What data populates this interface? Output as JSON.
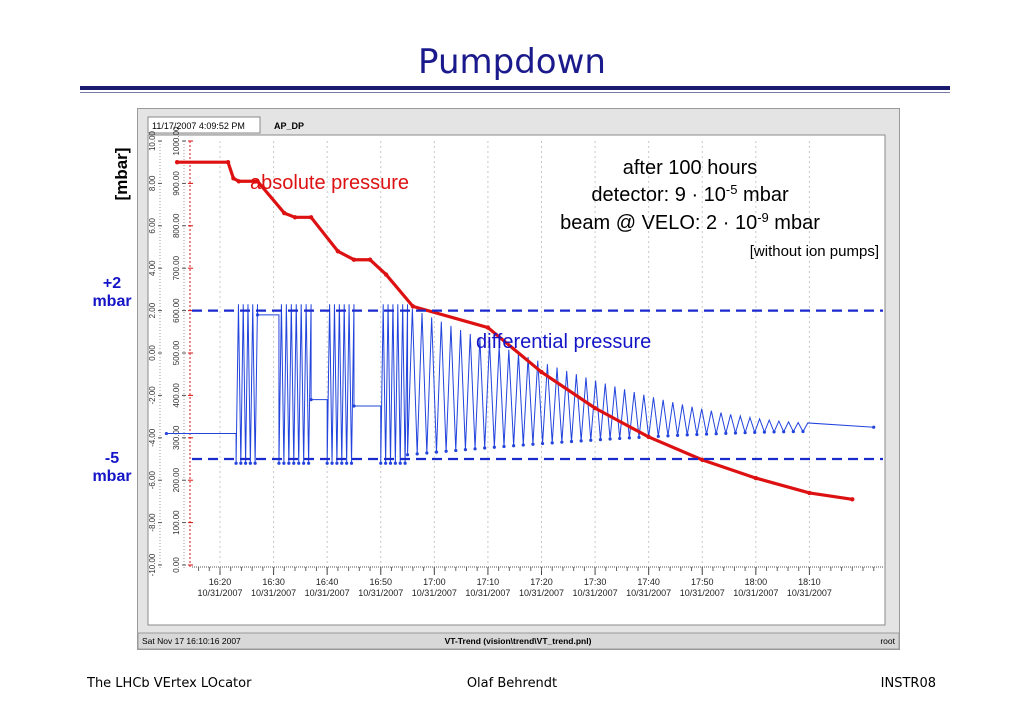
{
  "slide": {
    "title": "Pumpdown",
    "footer_left": "The LHCb VErtex LOcator",
    "footer_center": "Olaf Behrendt",
    "footer_right": "INSTR08"
  },
  "side_labels": {
    "unit": "[mbar]",
    "plus": "+2",
    "plus_unit": "mbar",
    "minus": "-5",
    "minus_unit": "mbar"
  },
  "window": {
    "timestamp": "11/17/2007  4:09:52 PM",
    "tag": "AP_DP",
    "status_left": "Sat Nov 17 16:10:16 2007",
    "status_center": "VT-Trend (vision\\trend\\VT_trend.pnl)",
    "status_right": "root"
  },
  "annotations": {
    "absolute": "absolute pressure",
    "differential": "differential pressure",
    "hours_line": "after 100 hours",
    "detector_prefix": "detector: 9 · 10",
    "detector_exp": "-5",
    "detector_suffix": " mbar",
    "beam_prefix": "beam @ VELO: 2 · 10",
    "beam_exp": "-9",
    "beam_suffix": " mbar",
    "note": "[without ion pumps]"
  },
  "colors": {
    "absolute": "#dd1111",
    "differential": "#2244dd",
    "dashed": "#1a2acc",
    "label_blue": "#1515c8"
  },
  "chart_data": {
    "type": "line",
    "x_ticks": [
      {
        "time": "16:20",
        "date": "10/31/2007"
      },
      {
        "time": "16:30",
        "date": "10/31/2007"
      },
      {
        "time": "16:40",
        "date": "10/31/2007"
      },
      {
        "time": "16:50",
        "date": "10/31/2007"
      },
      {
        "time": "17:00",
        "date": "10/31/2007"
      },
      {
        "time": "17:10",
        "date": "10/31/2007"
      },
      {
        "time": "17:20",
        "date": "10/31/2007"
      },
      {
        "time": "17:30",
        "date": "10/31/2007"
      },
      {
        "time": "17:40",
        "date": "10/31/2007"
      },
      {
        "time": "17:50",
        "date": "10/31/2007"
      },
      {
        "time": "18:00",
        "date": "10/31/2007"
      },
      {
        "time": "18:10",
        "date": "10/31/2007"
      }
    ],
    "xlim_minutes": [
      0,
      120
    ],
    "y_left_ticks": [
      "10.00",
      "8.00",
      "6.00",
      "4.00",
      "2.00",
      "0.00",
      "-2.00",
      "-4.00",
      "-6.00",
      "-8.00",
      "-10.00"
    ],
    "y_right_ticks": [
      "1000.00",
      "900.00",
      "800.00",
      "700.00",
      "600.00",
      "500.00",
      "400.00",
      "300.00",
      "200.00",
      "100.00",
      "0.00"
    ],
    "ylim_left": [
      -10,
      10
    ],
    "ylim_right": [
      0,
      1000
    ],
    "reference_lines": [
      2,
      -5
    ],
    "series": [
      {
        "name": "absolute pressure",
        "axis": "right",
        "points": [
          [
            -8,
            950
          ],
          [
            1.5,
            950
          ],
          [
            2.5,
            912
          ],
          [
            3.5,
            905
          ],
          [
            7,
            905
          ],
          [
            12,
            830
          ],
          [
            14,
            820
          ],
          [
            17,
            820
          ],
          [
            22,
            740
          ],
          [
            25,
            720
          ],
          [
            28,
            720
          ],
          [
            31,
            685
          ],
          [
            36,
            610
          ],
          [
            50,
            560
          ],
          [
            60,
            455
          ],
          [
            70,
            370
          ],
          [
            80,
            302
          ],
          [
            90,
            248
          ],
          [
            100,
            205
          ],
          [
            110,
            170
          ],
          [
            118,
            155
          ]
        ]
      },
      {
        "name": "differential pressure",
        "axis": "left",
        "envelope": {
          "baseline_start": -3.8,
          "bursts_minutes": [
            [
              3,
              7
            ],
            [
              11,
              17
            ],
            [
              20,
              25
            ],
            [
              30,
              35
            ]
          ],
          "burst_range": [
            -5.2,
            2.3
          ],
          "flat_levels": [
            [
              7,
              11,
              1.8
            ],
            [
              17,
              20,
              -2.2
            ],
            [
              25,
              30,
              -2.5
            ]
          ],
          "decay_start_minute": 35,
          "decay_end_minute": 110,
          "decay_range_start": [
            -4.8,
            2.2
          ],
          "decay_range_end": [
            -3.7,
            -3.3
          ],
          "final_level": -3.5
        }
      }
    ]
  }
}
